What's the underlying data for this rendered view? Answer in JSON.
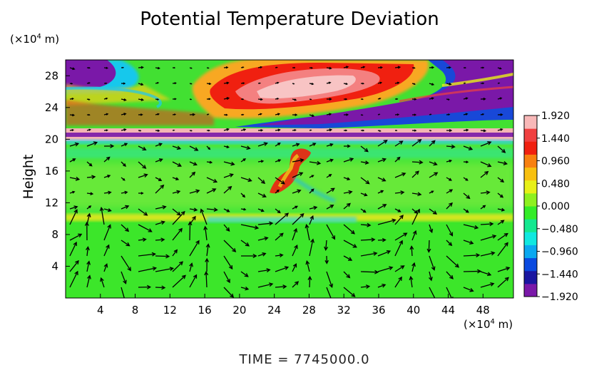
{
  "chart_data": {
    "type": "heatmap",
    "title": "Potential Temperature Deviation",
    "xlabel": "",
    "ylabel": "Height",
    "x_units_label": "(×10⁴ m)",
    "y_units_label": "(×10⁴ m)",
    "footer": "TIME  =  7745000.0",
    "xlim": [
      0,
      51.5
    ],
    "ylim": [
      0,
      30
    ],
    "x_ticks": [
      4,
      8,
      12,
      16,
      20,
      24,
      28,
      32,
      36,
      40,
      44,
      48
    ],
    "y_ticks": [
      4,
      8,
      12,
      16,
      20,
      24,
      28
    ],
    "colorbar": {
      "min": -1.92,
      "max": 1.92,
      "labels": [
        "1.920",
        "1.440",
        "0.960",
        "0.480",
        "0.000",
        "−0.480",
        "−0.960",
        "−1.440",
        "−1.920"
      ],
      "label_values": [
        1.92,
        1.44,
        0.96,
        0.48,
        0.0,
        -0.48,
        -0.96,
        -1.44,
        -1.92
      ],
      "colors": [
        "#7a18a8",
        "#1a16a0",
        "#0a4ae0",
        "#0aa8f0",
        "#10e8e0",
        "#14e890",
        "#34ec28",
        "#8ef020",
        "#e8f018",
        "#f8c010",
        "#f88010",
        "#f02010",
        "#f04040",
        "#f8b8b8"
      ]
    },
    "field_regions": [
      {
        "region": "upper band (y ≈ 25–30), west",
        "value": -1.9
      },
      {
        "region": "upper band (y ≈ 24–30), center x ≈ 22–40",
        "value": 1.9
      },
      {
        "region": "upper band (y ≈ 21–29), east",
        "value": -1.9
      },
      {
        "region": "band y ≈ 20–22",
        "value": 1.9
      },
      {
        "region": "band y ≈ 22–23",
        "value": -1.9
      },
      {
        "region": "lower troposphere (y < 19)",
        "value": 0.1
      },
      {
        "region": "layer near y ≈ 9.5",
        "value": 0.8
      },
      {
        "region": "filament x ≈ 23–29, y ≈ 12–19",
        "value": 1.6
      }
    ],
    "vector_field": "wind arrows over domain; strong circulation cells below y ≈ 10"
  }
}
